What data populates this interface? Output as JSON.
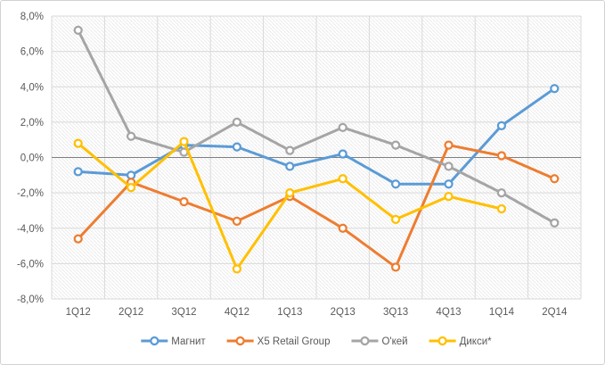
{
  "chart": {
    "background": "#ffffff",
    "frame_border_color": "#d2d2d2"
  },
  "chart_data": {
    "type": "line",
    "title": "",
    "xlabel": "",
    "ylabel": "",
    "categories": [
      "1Q12",
      "2Q12",
      "3Q12",
      "4Q12",
      "1Q13",
      "2Q13",
      "3Q13",
      "4Q13",
      "1Q14",
      "2Q14"
    ],
    "series": [
      {
        "name": "Магнит",
        "color": "#5B9BD5",
        "values": [
          -0.8,
          -1.0,
          0.7,
          0.6,
          -0.5,
          0.2,
          -1.5,
          -1.5,
          1.8,
          3.9
        ]
      },
      {
        "name": "X5 Retail Group",
        "color": "#ED7D31",
        "values": [
          -4.6,
          -1.4,
          -2.5,
          -3.6,
          -2.2,
          -4.0,
          -6.2,
          0.7,
          0.1,
          -1.2
        ]
      },
      {
        "name": "О'кей",
        "color": "#A5A5A5",
        "values": [
          7.2,
          1.2,
          0.3,
          2.0,
          0.4,
          1.7,
          0.7,
          -0.5,
          -2.0,
          -3.7
        ]
      },
      {
        "name": "Дикси*",
        "color": "#FFC000",
        "values": [
          0.8,
          -1.7,
          0.9,
          -6.3,
          -2.0,
          -1.2,
          -3.5,
          -2.2,
          -2.9,
          null
        ]
      }
    ],
    "ylim": [
      -8,
      8
    ],
    "y_tick_step": 2,
    "y_tick_labels": [
      "8,0%",
      "6,0%",
      "4,0%",
      "2,0%",
      "0,0%",
      "-2,0%",
      "-4,0%",
      "-6,0%",
      "-8,0%"
    ],
    "grid": true,
    "grid_color": "#D9D9D9",
    "zero_line_color": "#7F7F7F",
    "plot_hatch_color": "#EBEBEB",
    "legend_position": "bottom",
    "legend_labels": [
      "Магнит",
      "X5 Retail Group",
      "О'кей",
      "Дикси*"
    ]
  }
}
